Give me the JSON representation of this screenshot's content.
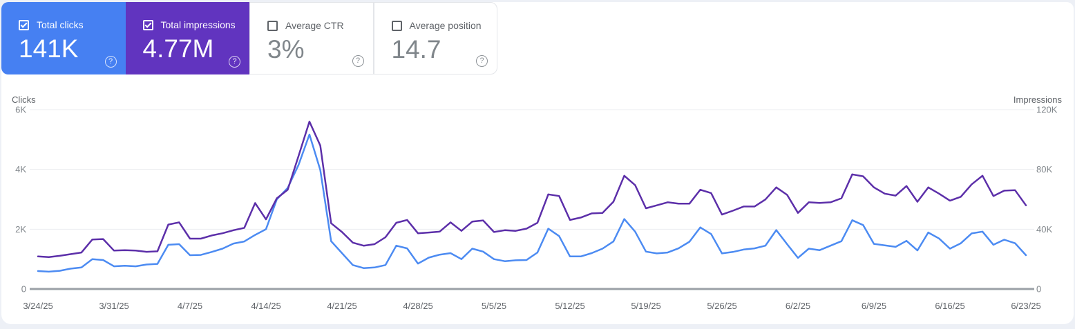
{
  "icons": {
    "help": "?"
  },
  "colors": {
    "clicks_blue_card": "#4680f2",
    "impressions_purple_card": "#6134bf",
    "clicks_blue_line": "#4c8bf2",
    "impressions_purple_line": "#5c2fa9",
    "page_background": "#edf0f6",
    "card_background": "#ffffff"
  },
  "cards": [
    {
      "label": "Total clicks",
      "value": "141K",
      "checked": true,
      "bg": "#4680f2"
    },
    {
      "label": "Total impressions",
      "value": "4.77M",
      "checked": true,
      "bg": "#6134bf"
    },
    {
      "label": "Average CTR",
      "value": "3%",
      "checked": false,
      "bg": "#ffffff"
    },
    {
      "label": "Average position",
      "value": "14.7",
      "checked": false,
      "bg": "#ffffff"
    }
  ],
  "chart_data": {
    "type": "line",
    "title": "",
    "grid": true,
    "legend": "none",
    "left_axis": {
      "title": "Clicks",
      "ticks": [
        "0",
        "2K",
        "4K",
        "6K"
      ],
      "max": 6000
    },
    "right_axis": {
      "title": "Impressions",
      "ticks": [
        "0",
        "40K",
        "80K",
        "120K"
      ],
      "max": 120000
    },
    "x_tick_labels": [
      "3/24/25",
      "3/31/25",
      "4/7/25",
      "4/14/25",
      "4/21/25",
      "4/28/25",
      "5/5/25",
      "5/12/25",
      "5/19/25",
      "5/26/25",
      "6/2/25",
      "6/9/25",
      "6/16/25",
      "6/23/25"
    ],
    "x_tick_day_indices": [
      0,
      7,
      14,
      21,
      28,
      35,
      42,
      49,
      56,
      63,
      70,
      77,
      84,
      91
    ],
    "dates": [
      "3/24/25",
      "3/25/25",
      "3/26/25",
      "3/27/25",
      "3/28/25",
      "3/29/25",
      "3/30/25",
      "3/31/25",
      "4/1/25",
      "4/2/25",
      "4/3/25",
      "4/4/25",
      "4/5/25",
      "4/6/25",
      "4/7/25",
      "4/8/25",
      "4/9/25",
      "4/10/25",
      "4/11/25",
      "4/12/25",
      "4/13/25",
      "4/14/25",
      "4/15/25",
      "4/16/25",
      "4/17/25",
      "4/18/25",
      "4/19/25",
      "4/20/25",
      "4/21/25",
      "4/22/25",
      "4/23/25",
      "4/24/25",
      "4/25/25",
      "4/26/25",
      "4/27/25",
      "4/28/25",
      "4/29/25",
      "4/30/25",
      "5/1/25",
      "5/2/25",
      "5/3/25",
      "5/4/25",
      "5/5/25",
      "5/6/25",
      "5/7/25",
      "5/8/25",
      "5/9/25",
      "5/10/25",
      "5/11/25",
      "5/12/25",
      "5/13/25",
      "5/14/25",
      "5/15/25",
      "5/16/25",
      "5/17/25",
      "5/18/25",
      "5/19/25",
      "5/20/25",
      "5/21/25",
      "5/22/25",
      "5/23/25",
      "5/24/25",
      "5/25/25",
      "5/26/25",
      "5/27/25",
      "5/28/25",
      "5/29/25",
      "5/30/25",
      "5/31/25",
      "6/1/25",
      "6/2/25",
      "6/3/25",
      "6/4/25",
      "6/5/25",
      "6/6/25",
      "6/7/25",
      "6/8/25",
      "6/9/25",
      "6/10/25",
      "6/11/25",
      "6/12/25",
      "6/13/25",
      "6/14/25",
      "6/15/25",
      "6/16/25",
      "6/17/25",
      "6/18/25",
      "6/19/25",
      "6/20/25",
      "6/21/25",
      "6/22/25",
      "6/23/25"
    ],
    "series": [
      {
        "name": "Clicks",
        "axis": "left",
        "color": "#4c8bf2",
        "values": [
          600,
          580,
          610,
          680,
          720,
          1000,
          970,
          760,
          780,
          760,
          820,
          840,
          1480,
          1500,
          1130,
          1140,
          1240,
          1350,
          1520,
          1590,
          1810,
          2000,
          3000,
          3380,
          4150,
          5170,
          3980,
          1600,
          1200,
          800,
          700,
          720,
          800,
          1450,
          1360,
          850,
          1050,
          1150,
          1200,
          1000,
          1350,
          1250,
          1000,
          930,
          960,
          970,
          1220,
          2020,
          1770,
          1090,
          1090,
          1200,
          1350,
          1590,
          2340,
          1920,
          1250,
          1190,
          1220,
          1360,
          1580,
          2060,
          1840,
          1190,
          1240,
          1320,
          1360,
          1450,
          1970,
          1500,
          1040,
          1350,
          1300,
          1450,
          1600,
          2300,
          2140,
          1510,
          1460,
          1410,
          1610,
          1290,
          1890,
          1690,
          1350,
          1530,
          1860,
          1920,
          1480,
          1650,
          1530,
          1130
        ]
      },
      {
        "name": "Impressions",
        "axis": "right",
        "color": "#5c2fa9",
        "values": [
          21800,
          21300,
          22200,
          23300,
          24400,
          33100,
          33400,
          25700,
          26000,
          25700,
          24900,
          25200,
          43100,
          44600,
          33700,
          33700,
          35800,
          37300,
          39300,
          40900,
          57500,
          46600,
          60700,
          66400,
          89000,
          112000,
          96000,
          44000,
          38100,
          31000,
          29000,
          30000,
          34600,
          44300,
          46200,
          37300,
          37800,
          38400,
          44600,
          38900,
          45100,
          45900,
          38100,
          39300,
          38900,
          40400,
          44300,
          63300,
          62200,
          46200,
          47800,
          50600,
          50900,
          58400,
          75800,
          69500,
          54000,
          56000,
          58000,
          57100,
          57100,
          66400,
          64200,
          49800,
          52400,
          55200,
          55200,
          59900,
          68000,
          63000,
          50900,
          58000,
          57600,
          58000,
          60700,
          76700,
          75400,
          68000,
          63800,
          62500,
          68900,
          58400,
          68000,
          63800,
          59100,
          61700,
          70000,
          75800,
          62200,
          65800,
          66100,
          56000
        ]
      }
    ]
  }
}
